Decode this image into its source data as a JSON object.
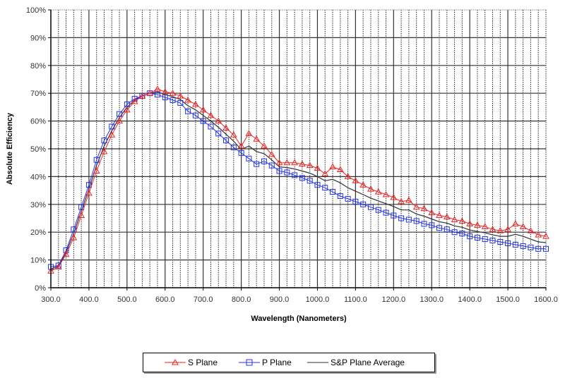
{
  "chart_data": {
    "type": "line",
    "title": "",
    "xlabel": "Wavelength (Nanometers)",
    "ylabel": "Absolute Efficiency",
    "xlim": [
      300,
      1600
    ],
    "ylim": [
      0,
      100
    ],
    "x_ticks": [
      "300.0",
      "400.0",
      "500.0",
      "600.0",
      "700.0",
      "800.0",
      "900.0",
      "1000.0",
      "1100.0",
      "1200.0",
      "1300.0",
      "1400.0",
      "1500.0",
      "1600.0"
    ],
    "y_ticks": [
      "0%",
      "10%",
      "20%",
      "30%",
      "40%",
      "50%",
      "60%",
      "70%",
      "80%",
      "90%",
      "100%"
    ],
    "grid": true,
    "legend_position": "bottom",
    "x": [
      300,
      320,
      340,
      360,
      380,
      400,
      420,
      440,
      460,
      480,
      500,
      520,
      540,
      560,
      580,
      600,
      620,
      640,
      660,
      680,
      700,
      720,
      740,
      760,
      780,
      800,
      820,
      840,
      860,
      880,
      900,
      920,
      940,
      960,
      980,
      1000,
      1020,
      1040,
      1060,
      1080,
      1100,
      1120,
      1140,
      1160,
      1180,
      1200,
      1220,
      1240,
      1260,
      1280,
      1300,
      1320,
      1340,
      1360,
      1380,
      1400,
      1420,
      1440,
      1460,
      1480,
      1500,
      1520,
      1540,
      1560,
      1580,
      1600
    ],
    "series": [
      {
        "name": "S Plane",
        "color": "#ee2222",
        "marker": "triangle",
        "values": [
          6,
          7.5,
          12,
          18,
          26,
          34,
          42,
          49,
          55,
          60,
          64,
          67,
          69,
          70,
          71.5,
          70.5,
          70,
          69,
          67.5,
          66,
          64,
          62,
          60,
          57.5,
          55,
          51,
          55.5,
          53.5,
          51,
          48,
          45,
          45,
          45,
          44.5,
          44,
          43,
          41,
          43.5,
          42.5,
          40,
          38.5,
          37,
          35.5,
          34.5,
          33.5,
          32.5,
          31,
          31.5,
          29,
          28.5,
          27,
          26,
          25.5,
          24.5,
          24,
          23,
          22.5,
          22,
          21,
          20.5,
          21,
          23,
          22,
          20.5,
          19,
          18.5
        ]
      },
      {
        "name": "P Plane",
        "color": "#2233ee",
        "marker": "square",
        "values": [
          7.5,
          8,
          13.5,
          21,
          29,
          37,
          46,
          53,
          58,
          62.5,
          66,
          68,
          69,
          70,
          69.5,
          68.5,
          67.5,
          66.5,
          63.5,
          62,
          60,
          58,
          55.5,
          53,
          50.5,
          48.5,
          46.5,
          44.5,
          45.5,
          44,
          42,
          41.5,
          40.5,
          39.5,
          38.5,
          37,
          36,
          34.5,
          33,
          32,
          31,
          30,
          29,
          28,
          27,
          26,
          25,
          24.5,
          24,
          23,
          22.5,
          21.5,
          21,
          20,
          19.5,
          18.5,
          18,
          17.5,
          17,
          16.5,
          16,
          15.5,
          15,
          14.5,
          14,
          14
        ]
      },
      {
        "name": "S&P Plane Average",
        "color": "#333333",
        "marker": "none",
        "values": [
          6.75,
          7.75,
          12.75,
          19.5,
          27.5,
          35.5,
          44,
          51,
          56.5,
          61.25,
          65,
          67.5,
          69,
          70,
          70.5,
          69.5,
          68.75,
          67.75,
          65.5,
          64,
          62,
          60,
          57.75,
          55.25,
          52.75,
          49.75,
          51,
          49,
          48.25,
          46,
          43.5,
          43.25,
          42.75,
          42,
          41.25,
          40,
          38.5,
          39,
          37.75,
          36,
          34.75,
          33.5,
          32.25,
          31.25,
          30.25,
          29.25,
          28,
          28,
          26.5,
          25.75,
          24.75,
          23.75,
          23.25,
          22.25,
          21.75,
          20.75,
          20.25,
          19.75,
          19,
          18.5,
          18.5,
          19.25,
          18.5,
          17.5,
          16.5,
          16.25
        ]
      }
    ]
  }
}
